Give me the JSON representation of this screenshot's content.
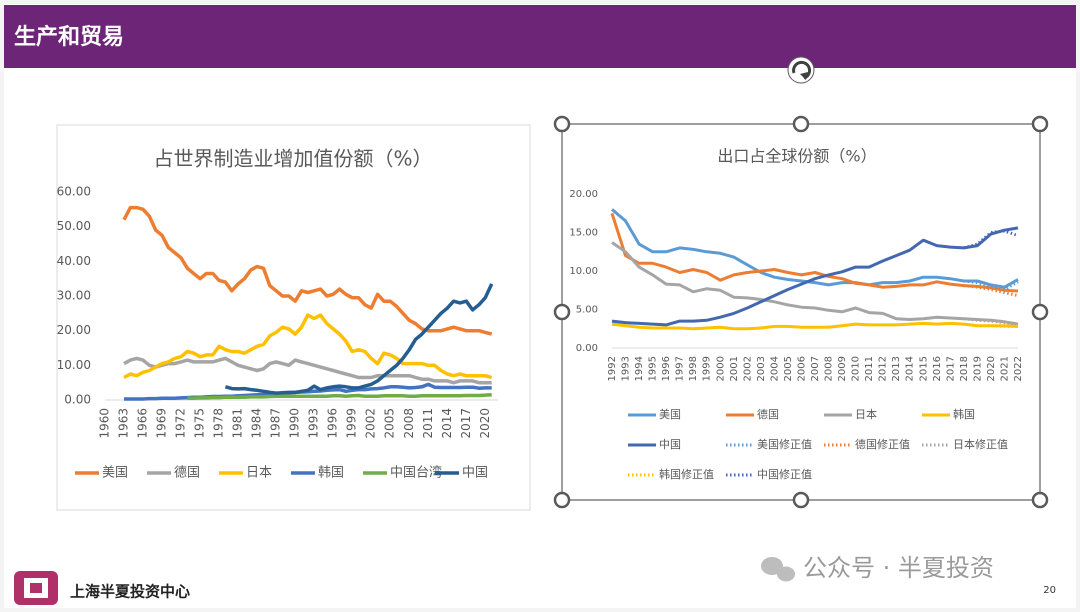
{
  "header": {
    "title": "生产和贸易"
  },
  "footer": {
    "logo_text": "上海半夏投资中心",
    "watermark": "公众号 · 半夏投资",
    "page_number": "20"
  },
  "chart_data": [
    {
      "type": "line",
      "title": "占世界制造业增加值份额（%）",
      "x": [
        1960,
        1961,
        1962,
        1963,
        1964,
        1965,
        1966,
        1967,
        1968,
        1969,
        1970,
        1971,
        1972,
        1973,
        1974,
        1975,
        1976,
        1977,
        1978,
        1979,
        1980,
        1981,
        1982,
        1983,
        1984,
        1985,
        1986,
        1987,
        1988,
        1989,
        1990,
        1991,
        1992,
        1993,
        1994,
        1995,
        1996,
        1997,
        1998,
        1999,
        2000,
        2001,
        2002,
        2003,
        2004,
        2005,
        2006,
        2007,
        2008,
        2009,
        2010,
        2011,
        2012,
        2013,
        2014,
        2015,
        2016,
        2017,
        2018,
        2019,
        2020,
        2021
      ],
      "xlim": [
        1960,
        2022
      ],
      "xticks": [
        1960,
        1963,
        1966,
        1969,
        1972,
        1975,
        1978,
        1981,
        1984,
        1987,
        1990,
        1993,
        1996,
        1999,
        2002,
        2005,
        2008,
        2011,
        2014,
        2017,
        2020
      ],
      "ylim": [
        0,
        60
      ],
      "yticks": [
        {
          "value": 0,
          "label": "0.00"
        },
        {
          "value": 10,
          "label": "10.00"
        },
        {
          "value": 20,
          "label": "20.00"
        },
        {
          "value": 30,
          "label": "30.00"
        },
        {
          "value": 40,
          "label": "40.00"
        },
        {
          "value": 50,
          "label": "50.00"
        },
        {
          "value": 60,
          "label": "60.00"
        }
      ],
      "series": [
        {
          "name": "美国",
          "color": "#ed7d31",
          "values": [
            null,
            null,
            null,
            52,
            55.5,
            55.5,
            55,
            53,
            49,
            47.5,
            44,
            42.5,
            41,
            38,
            36.5,
            35,
            36.5,
            36.5,
            34.5,
            34,
            31.5,
            33.5,
            35,
            37.5,
            38.5,
            38,
            33,
            31.5,
            30,
            30,
            28.5,
            31.5,
            31,
            31.5,
            32,
            30,
            30.5,
            32,
            30.5,
            29.5,
            29.5,
            27.5,
            26.5,
            30.5,
            28.5,
            28.5,
            27,
            25,
            23,
            22,
            20.5,
            20,
            20,
            20,
            20.5,
            21,
            20.5,
            20,
            20,
            20,
            19.5,
            19
          ]
        },
        {
          "name": "德国",
          "color": "#a5a5a5",
          "values": [
            null,
            null,
            null,
            10.5,
            11.5,
            12,
            11.5,
            10,
            9.5,
            10,
            10.5,
            10.5,
            11,
            11.5,
            11,
            11,
            11,
            11,
            11.5,
            12,
            11,
            10,
            9.5,
            9,
            8.5,
            9,
            10.5,
            11,
            10.5,
            10,
            11.5,
            11,
            10.5,
            10,
            9.5,
            9,
            8.5,
            8,
            7.5,
            7,
            6.5,
            6.5,
            6.5,
            7,
            7,
            7,
            7,
            7,
            7,
            6.5,
            6,
            6,
            5.5,
            5.5,
            5.5,
            5,
            5.5,
            5.5,
            5.5,
            5,
            5,
            5
          ]
        },
        {
          "name": "日本",
          "color": "#ffc000",
          "values": [
            null,
            null,
            null,
            6.5,
            7.5,
            7,
            8,
            8.5,
            9.5,
            10.5,
            11,
            12,
            12.5,
            14,
            13.5,
            12.5,
            13,
            13,
            15.5,
            14.5,
            14,
            14,
            13.5,
            14.5,
            15.5,
            16,
            18.5,
            19.5,
            21,
            20.5,
            19,
            21,
            24.5,
            23.5,
            24.5,
            22,
            20.5,
            19,
            17,
            14,
            14.5,
            14,
            12,
            10.5,
            13.5,
            13,
            12,
            10.5,
            10.5,
            10.5,
            10.5,
            10,
            10,
            8.5,
            7.5,
            7,
            7.5,
            7,
            7,
            7,
            7,
            6.5
          ]
        },
        {
          "name": "韩国",
          "color": "#4472c4",
          "values": [
            null,
            null,
            null,
            0.3,
            0.3,
            0.3,
            0.3,
            0.4,
            0.4,
            0.5,
            0.5,
            0.5,
            0.6,
            0.7,
            0.8,
            0.8,
            0.9,
            1.0,
            1.0,
            1.1,
            1.1,
            1.2,
            1.3,
            1.4,
            1.5,
            1.6,
            1.8,
            1.9,
            2.0,
            2.1,
            2.2,
            2.3,
            2.4,
            2.5,
            2.6,
            2.8,
            2.9,
            3.0,
            2.5,
            2.8,
            3.0,
            3.0,
            3.2,
            3.3,
            3.5,
            3.8,
            3.8,
            3.7,
            3.5,
            3.6,
            3.8,
            4.5,
            3.7,
            3.6,
            3.6,
            3.6,
            3.6,
            3.7,
            3.7,
            3.4,
            3.5,
            3.5
          ]
        },
        {
          "name": "中国台湾",
          "color": "#70ad47",
          "values": [
            null,
            null,
            null,
            null,
            null,
            null,
            null,
            null,
            null,
            null,
            null,
            null,
            null,
            0.5,
            0.5,
            0.6,
            0.6,
            0.7,
            0.7,
            0.8,
            0.8,
            0.8,
            0.8,
            0.9,
            0.9,
            0.9,
            1.0,
            1.1,
            1.1,
            1.1,
            1.1,
            1.1,
            1.1,
            1.1,
            1.1,
            1.1,
            1.2,
            1.2,
            1.1,
            1.2,
            1.3,
            1.1,
            1.1,
            1.1,
            1.2,
            1.2,
            1.2,
            1.2,
            1.1,
            1.1,
            1.2,
            1.2,
            1.2,
            1.2,
            1.2,
            1.2,
            1.2,
            1.3,
            1.3,
            1.3,
            1.4,
            1.5
          ]
        },
        {
          "name": "中国",
          "color": "#255e91",
          "values": [
            null,
            null,
            null,
            null,
            null,
            null,
            null,
            null,
            null,
            null,
            null,
            null,
            null,
            null,
            null,
            null,
            null,
            null,
            null,
            3.8,
            3.3,
            3.2,
            3.3,
            3.0,
            2.8,
            2.5,
            2.2,
            2.0,
            2.1,
            2.2,
            2.2,
            2.5,
            2.8,
            4.0,
            3.0,
            3.5,
            3.8,
            4.0,
            3.8,
            3.5,
            3.5,
            4.0,
            4.5,
            5.5,
            7.0,
            8.5,
            10.0,
            12.0,
            14.5,
            17.5,
            19.0,
            21.0,
            23.0,
            25.0,
            26.5,
            28.5,
            28.0,
            28.5,
            26.0,
            27.5,
            29.5,
            33.5
          ]
        }
      ]
    },
    {
      "type": "line",
      "title": "出口占全球份额（%）",
      "x": [
        1992,
        1993,
        1994,
        1995,
        1996,
        1997,
        1998,
        1999,
        2000,
        2001,
        2002,
        2003,
        2004,
        2005,
        2006,
        2007,
        2008,
        2009,
        2010,
        2011,
        2012,
        2013,
        2014,
        2015,
        2016,
        2017,
        2018,
        2019,
        2020,
        2021,
        2022
      ],
      "xlim": [
        1992,
        2022
      ],
      "ylim": [
        0,
        20
      ],
      "yticks": [
        {
          "value": 0,
          "label": "0.00"
        },
        {
          "value": 5,
          "label": "5.00"
        },
        {
          "value": 10,
          "label": "10.00"
        },
        {
          "value": 15,
          "label": "15.00"
        },
        {
          "value": 20,
          "label": "20.00"
        }
      ],
      "series": [
        {
          "name": "美国",
          "color": "#5b9bd5",
          "values": [
            18,
            16.5,
            13.5,
            12.5,
            12.5,
            13,
            12.8,
            12.5,
            12.3,
            11.8,
            10.8,
            9.8,
            9.2,
            8.9,
            8.7,
            8.5,
            8.2,
            8.5,
            8.5,
            8.2,
            8.5,
            8.5,
            8.7,
            9.2,
            9.2,
            9.0,
            8.7,
            8.7,
            8.2,
            7.9,
            8.9
          ]
        },
        {
          "name": "德国",
          "color": "#ed7d31",
          "values": [
            17.5,
            12,
            11,
            11,
            10.5,
            9.8,
            10.2,
            9.8,
            8.8,
            9.5,
            9.8,
            10,
            10.2,
            9.8,
            9.5,
            9.8,
            9.3,
            9.0,
            8.4,
            8.2,
            7.9,
            8.0,
            8.2,
            8.2,
            8.6,
            8.3,
            8.1,
            8.0,
            7.8,
            7.5,
            7.4
          ]
        },
        {
          "name": "日本",
          "color": "#a5a5a5",
          "values": [
            13.7,
            12.5,
            10.5,
            9.5,
            8.3,
            8.2,
            7.3,
            7.7,
            7.5,
            6.6,
            6.5,
            6.3,
            6.0,
            5.6,
            5.3,
            5.2,
            4.9,
            4.7,
            5.2,
            4.6,
            4.5,
            3.8,
            3.7,
            3.8,
            4.0,
            3.9,
            3.8,
            3.7,
            3.6,
            3.4,
            3.1
          ]
        },
        {
          "name": "韩国",
          "color": "#ffc000",
          "values": [
            3.1,
            2.9,
            2.7,
            2.6,
            2.6,
            2.6,
            2.5,
            2.6,
            2.7,
            2.5,
            2.5,
            2.6,
            2.8,
            2.8,
            2.7,
            2.7,
            2.7,
            2.9,
            3.1,
            3.0,
            3.0,
            3.0,
            3.1,
            3.2,
            3.1,
            3.2,
            3.1,
            2.9,
            2.9,
            2.9,
            2.8
          ]
        },
        {
          "name": "中国",
          "color": "#4468b0",
          "values": [
            3.5,
            3.3,
            3.2,
            3.1,
            3.0,
            3.5,
            3.5,
            3.6,
            4.0,
            4.5,
            5.2,
            6.0,
            6.8,
            7.6,
            8.3,
            9.0,
            9.5,
            9.9,
            10.5,
            10.5,
            11.3,
            12.0,
            12.7,
            14.0,
            13.3,
            13.1,
            13.0,
            13.3,
            14.8,
            15.3,
            15.6
          ]
        },
        {
          "name": "美国修正值",
          "color": "#5b9bd5",
          "style": "dotted",
          "values": [
            null,
            null,
            null,
            null,
            null,
            null,
            null,
            null,
            null,
            null,
            null,
            null,
            null,
            null,
            null,
            null,
            null,
            null,
            null,
            null,
            null,
            null,
            null,
            null,
            null,
            null,
            8.7,
            8.5,
            8.0,
            7.6,
            8.6
          ]
        },
        {
          "name": "德国修正值",
          "color": "#ed7d31",
          "style": "dotted",
          "values": [
            null,
            null,
            null,
            null,
            null,
            null,
            null,
            null,
            null,
            null,
            null,
            null,
            null,
            null,
            null,
            null,
            null,
            null,
            null,
            null,
            null,
            null,
            null,
            null,
            null,
            null,
            8.1,
            7.9,
            7.6,
            7.2,
            6.8
          ]
        },
        {
          "name": "日本修正值",
          "color": "#a5a5a5",
          "style": "dotted",
          "values": [
            null,
            null,
            null,
            null,
            null,
            null,
            null,
            null,
            null,
            null,
            null,
            null,
            null,
            null,
            null,
            null,
            null,
            null,
            null,
            null,
            null,
            null,
            null,
            null,
            null,
            null,
            3.8,
            3.6,
            3.5,
            3.3,
            3.0
          ]
        },
        {
          "name": "韩国修正值",
          "color": "#ffc000",
          "style": "dotted",
          "values": [
            null,
            null,
            null,
            null,
            null,
            null,
            null,
            null,
            null,
            null,
            null,
            null,
            null,
            null,
            null,
            null,
            null,
            null,
            null,
            null,
            null,
            null,
            null,
            null,
            null,
            null,
            3.1,
            2.9,
            2.9,
            2.8,
            2.8
          ]
        },
        {
          "name": "中国修正值",
          "color": "#4468b0",
          "style": "dotted",
          "values": [
            null,
            null,
            null,
            null,
            null,
            null,
            null,
            null,
            null,
            null,
            null,
            null,
            null,
            null,
            null,
            null,
            null,
            null,
            null,
            null,
            null,
            null,
            null,
            null,
            null,
            null,
            13.0,
            13.5,
            15.0,
            15.2,
            14.6
          ]
        }
      ]
    }
  ]
}
